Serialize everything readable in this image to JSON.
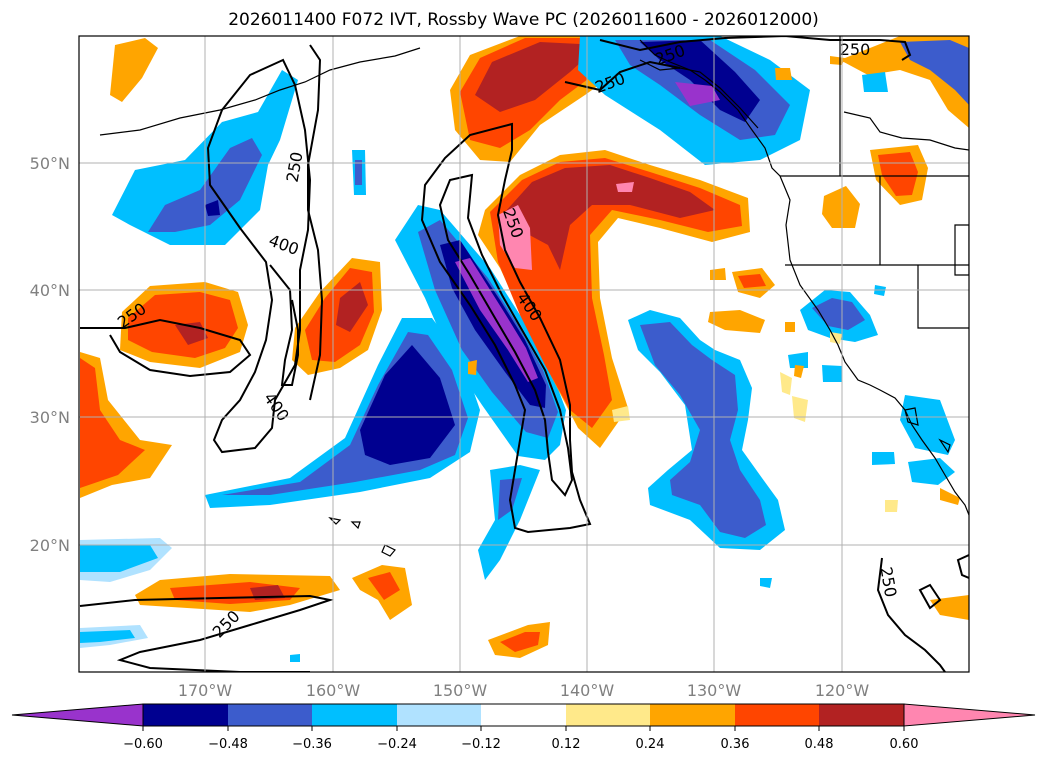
{
  "title": "2026011400 F072 IVT, Rossby Wave PC (2026011600 - 2026012000)",
  "map": {
    "lat_labels": [
      "50°N",
      "40°N",
      "30°N",
      "20°N"
    ],
    "lon_labels": [
      "170°W",
      "160°W",
      "150°W",
      "140°W",
      "130°W",
      "120°W"
    ],
    "contour_labels": [
      "250",
      "400",
      "250",
      "250",
      "400",
      "400",
      "250",
      "250",
      "250",
      "250",
      "250"
    ]
  },
  "colorbar": {
    "ticks": [
      "−0.60",
      "−0.48",
      "−0.36",
      "−0.24",
      "−0.12",
      "0.12",
      "0.24",
      "0.36",
      "0.48",
      "0.60"
    ],
    "colors": [
      "#9933cc",
      "#000090",
      "#3c5ccc",
      "#00bfff",
      "#b0e2ff",
      "#ffffff",
      "#ffe98a",
      "#ffa500",
      "#ff4500",
      "#b22222",
      "#ff86b0"
    ]
  }
}
